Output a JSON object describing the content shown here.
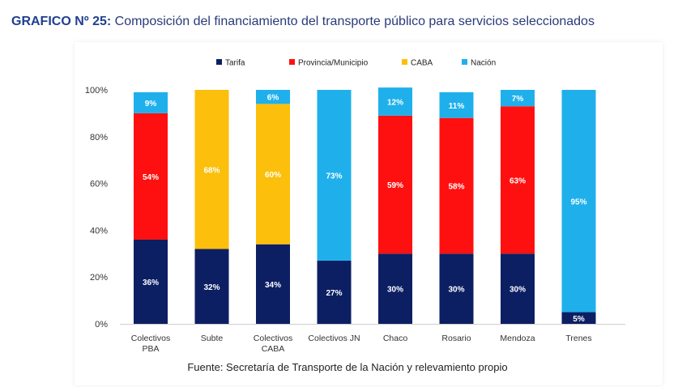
{
  "header": {
    "title_prefix": "GRAFICO Nº 25",
    "title_sep": ":",
    "title_text": " Composición del financiamiento del transporte público para servicios seleccionados"
  },
  "footer": {
    "source": "Fuente: Secretaría de Transporte de la Nación y relevamiento propio"
  },
  "chart_data": {
    "type": "bar",
    "stacked": true,
    "title": "",
    "xlabel": "",
    "ylabel": "",
    "ylim": [
      0,
      100
    ],
    "yticks": [
      "0%",
      "20%",
      "40%",
      "60%",
      "80%",
      "100%"
    ],
    "legend_position": "top",
    "grid": false,
    "categories": [
      [
        "Colectivos",
        "PBA"
      ],
      [
        "Subte"
      ],
      [
        "Colectivos",
        "CABA"
      ],
      [
        "Colectivos JN"
      ],
      [
        "Chaco"
      ],
      [
        "Rosario"
      ],
      [
        "Mendoza"
      ],
      [
        "Trenes"
      ]
    ],
    "series": [
      {
        "name": "Tarifa",
        "color": "#0d1f63",
        "values": [
          36,
          32,
          34,
          27,
          30,
          30,
          30,
          5
        ]
      },
      {
        "name": "Provincia/Municipio",
        "color": "#ff1010",
        "values": [
          54,
          0,
          0,
          0,
          59,
          58,
          63,
          0
        ]
      },
      {
        "name": "CABA",
        "color": "#fbbf0c",
        "values": [
          0,
          68,
          60,
          0,
          0,
          0,
          0,
          0
        ]
      },
      {
        "name": "Nación",
        "color": "#1fb0ec",
        "values": [
          9,
          0,
          6,
          73,
          12,
          11,
          7,
          95
        ]
      }
    ]
  }
}
